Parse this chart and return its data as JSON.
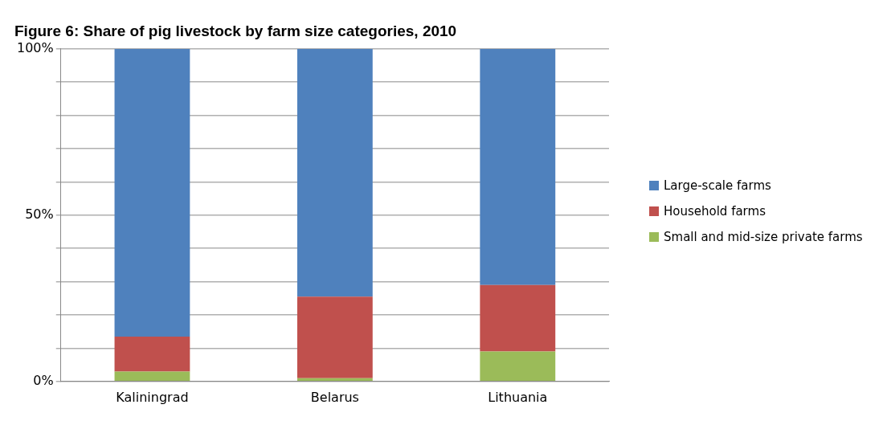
{
  "chart_data": {
    "type": "bar",
    "title": "Figure 6: Share of pig livestock by farm size categories, 2010",
    "categories": [
      "Kaliningrad",
      "Belarus",
      "Lithuania"
    ],
    "stacked": true,
    "series": [
      {
        "name": "Small and mid-size private farms",
        "color": "#9bbb59",
        "values": [
          3,
          1,
          9
        ]
      },
      {
        "name": "Household farms",
        "color": "#c0504d",
        "values": [
          10.5,
          24.5,
          20
        ]
      },
      {
        "name": "Large-scale farms",
        "color": "#4f81bd",
        "values": [
          86.5,
          74.5,
          71
        ]
      }
    ],
    "ylim": [
      0,
      100
    ],
    "yticks": [
      {
        "value": 0,
        "label": "0%"
      },
      {
        "value": 10,
        "label": null
      },
      {
        "value": 20,
        "label": null
      },
      {
        "value": 30,
        "label": null
      },
      {
        "value": 40,
        "label": null
      },
      {
        "value": 50,
        "label": "50%"
      },
      {
        "value": 60,
        "label": null
      },
      {
        "value": 70,
        "label": null
      },
      {
        "value": 80,
        "label": null
      },
      {
        "value": 90,
        "label": null
      },
      {
        "value": 100,
        "label": "100%"
      }
    ],
    "grid": "y",
    "legend": "right"
  }
}
